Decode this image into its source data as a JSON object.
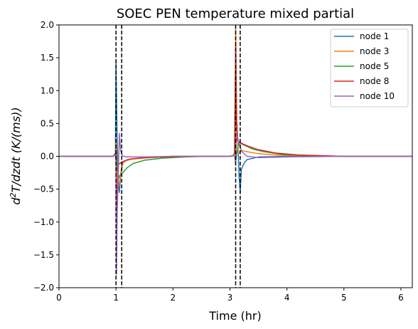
{
  "chart_data": {
    "type": "line",
    "title": "SOEC PEN temperature mixed partial",
    "xlabel": "Time (hr)",
    "ylabel_parts": {
      "prefix": "d",
      "sup": "2",
      "rest": "T/dzdt (K/(ms))"
    },
    "xlim": [
      0,
      6.2
    ],
    "ylim": [
      -2.0,
      2.0
    ],
    "xticks": [
      "0",
      "1",
      "2",
      "3",
      "4",
      "5",
      "6"
    ],
    "xtick_values": [
      0,
      1,
      2,
      3,
      4,
      5,
      6
    ],
    "yticks": [
      "−2.0",
      "−1.5",
      "−1.0",
      "−0.5",
      "0.0",
      "0.5",
      "1.0",
      "1.5",
      "2.0"
    ],
    "ytick_values": [
      -2.0,
      -1.5,
      -1.0,
      -0.5,
      0.0,
      0.5,
      1.0,
      1.5,
      2.0
    ],
    "grid": false,
    "legend_position": "top-right",
    "vlines": [
      1.0,
      1.1,
      3.1,
      3.18
    ],
    "vline_color": "#000000",
    "series": [
      {
        "name": "node 1",
        "color": "#1f77b4",
        "x": [
          0,
          0.95,
          0.99,
          1.0,
          1.01,
          1.02,
          1.04,
          1.06,
          1.08,
          1.1,
          1.12,
          1.2,
          1.5,
          2.0,
          2.5,
          3.0,
          3.05,
          3.08,
          3.1,
          3.12,
          3.14,
          3.16,
          3.18,
          3.2,
          3.25,
          3.3,
          3.5,
          4.0,
          5.0,
          6.2
        ],
        "y": [
          0.0,
          0.0,
          0.05,
          1.45,
          0.9,
          0.3,
          -0.4,
          -0.55,
          -0.3,
          -0.2,
          -0.1,
          -0.05,
          -0.02,
          0.0,
          0.0,
          0.0,
          0.0,
          0.05,
          1.5,
          0.6,
          0.2,
          -0.3,
          -0.55,
          -0.2,
          -0.1,
          -0.05,
          -0.01,
          0.0,
          0.0,
          0.0
        ]
      },
      {
        "name": "node 3",
        "color": "#ff7f0e",
        "x": [
          0,
          0.95,
          0.99,
          1.0,
          1.01,
          1.03,
          1.05,
          1.07,
          1.1,
          1.15,
          1.3,
          1.6,
          2.0,
          2.5,
          3.0,
          3.05,
          3.09,
          3.1,
          3.12,
          3.14,
          3.16,
          3.2,
          3.3,
          3.5,
          3.8,
          4.2,
          5.0,
          6.2
        ],
        "y": [
          0.0,
          0.0,
          0.02,
          0.25,
          0.05,
          -0.3,
          -0.45,
          -0.35,
          -0.15,
          -0.07,
          -0.04,
          -0.02,
          0.0,
          0.0,
          0.0,
          0.0,
          0.05,
          1.95,
          0.5,
          0.1,
          0.05,
          0.09,
          0.07,
          0.04,
          0.02,
          0.01,
          0.0,
          0.0
        ]
      },
      {
        "name": "node 5",
        "color": "#2ca02c",
        "x": [
          0,
          0.95,
          0.99,
          1.0,
          1.02,
          1.04,
          1.06,
          1.08,
          1.1,
          1.15,
          1.2,
          1.3,
          1.5,
          1.8,
          2.2,
          2.6,
          3.0,
          3.08,
          3.1,
          3.12,
          3.15,
          3.18,
          3.25,
          3.4,
          3.6,
          3.9,
          4.3,
          5.0,
          6.2
        ],
        "y": [
          0.0,
          0.0,
          0.02,
          0.1,
          -0.2,
          -0.35,
          -0.3,
          -0.28,
          -0.27,
          -0.22,
          -0.17,
          -0.11,
          -0.06,
          -0.03,
          -0.01,
          0.0,
          0.0,
          0.02,
          -0.1,
          0.05,
          0.18,
          0.2,
          0.17,
          0.11,
          0.07,
          0.03,
          0.01,
          0.0,
          0.0
        ]
      },
      {
        "name": "node 8",
        "color": "#d62728",
        "x": [
          0,
          0.95,
          0.99,
          1.0,
          1.01,
          1.02,
          1.03,
          1.05,
          1.08,
          1.1,
          1.15,
          1.25,
          1.5,
          1.9,
          2.4,
          3.0,
          3.08,
          3.1,
          3.11,
          3.13,
          3.16,
          3.2,
          3.3,
          3.5,
          3.8,
          4.2,
          5.0,
          6.2
        ],
        "y": [
          0.0,
          0.0,
          0.02,
          0.08,
          -1.5,
          -0.6,
          -0.2,
          -0.12,
          -0.1,
          -0.09,
          -0.07,
          -0.04,
          -0.02,
          -0.01,
          0.0,
          0.0,
          0.02,
          1.7,
          0.5,
          0.25,
          0.22,
          0.2,
          0.16,
          0.1,
          0.05,
          0.02,
          0.0,
          0.0
        ]
      },
      {
        "name": "node 10",
        "color": "#9467bd",
        "x": [
          0,
          0.95,
          0.99,
          1.0,
          1.01,
          1.02,
          1.04,
          1.06,
          1.08,
          1.1,
          1.13,
          1.2,
          1.5,
          2.0,
          2.5,
          3.0,
          3.08,
          3.1,
          3.11,
          3.13,
          3.16,
          3.2,
          3.3,
          3.5,
          4.0,
          5.0,
          6.2
        ],
        "y": [
          0.0,
          0.0,
          0.02,
          -0.1,
          -1.8,
          -0.9,
          -0.3,
          0.35,
          0.1,
          0.03,
          0.0,
          -0.01,
          -0.01,
          0.0,
          0.0,
          0.0,
          0.02,
          -0.12,
          0.28,
          0.3,
          0.2,
          0.08,
          0.0,
          -0.02,
          -0.01,
          0.0,
          0.0
        ]
      }
    ]
  }
}
